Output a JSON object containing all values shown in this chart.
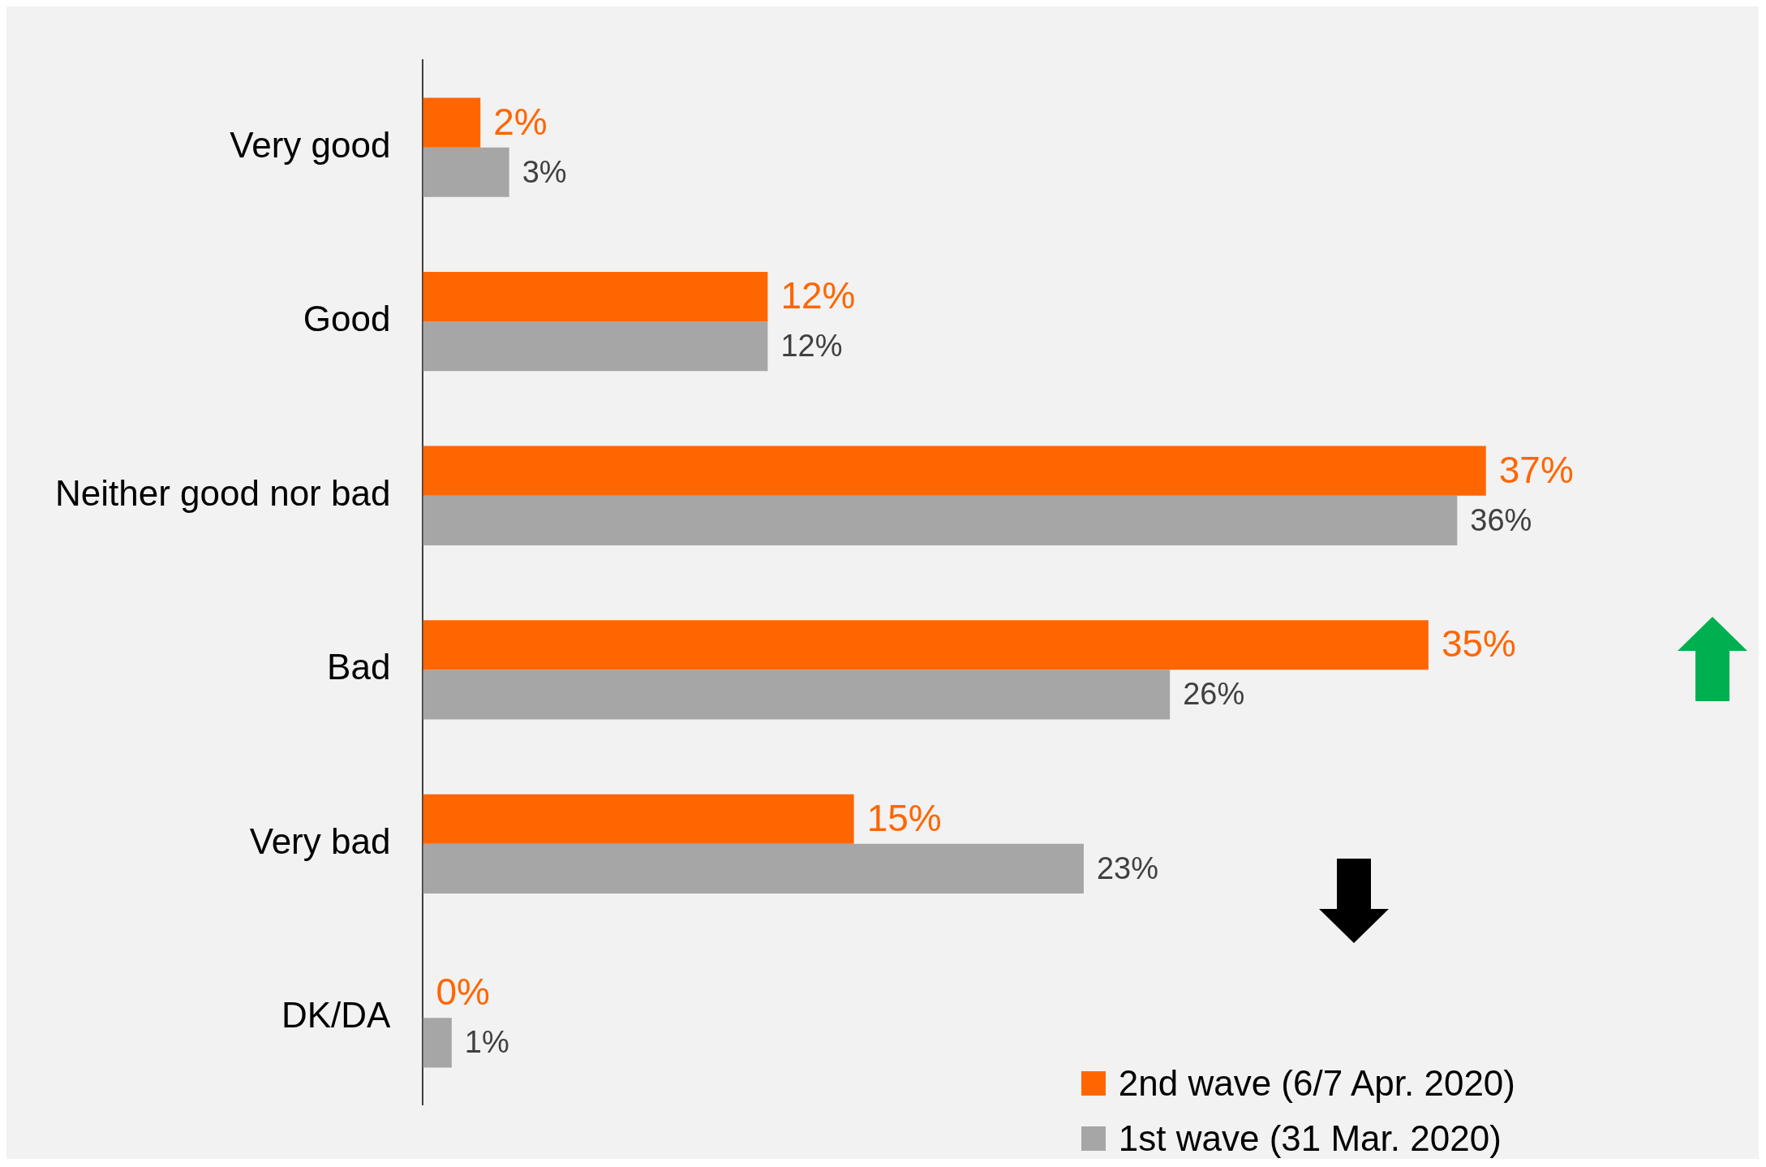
{
  "chart_data": {
    "type": "bar",
    "orientation": "horizontal",
    "categories": [
      "Very good",
      "Good",
      "Neither good nor bad",
      "Bad",
      "Very bad",
      "DK/DA"
    ],
    "series": [
      {
        "name": "2nd wave (6/7 Apr. 2020)",
        "color": "#ff6600",
        "values": [
          2,
          12,
          37,
          35,
          15,
          0
        ],
        "value_labels": [
          "2%",
          "12%",
          "37%",
          "35%",
          "15%",
          "0%"
        ]
      },
      {
        "name": "1st wave (31 Mar. 2020)",
        "color": "#a6a6a6",
        "values": [
          3,
          12,
          36,
          26,
          23,
          1
        ],
        "value_labels": [
          "3%",
          "12%",
          "36%",
          "26%",
          "23%",
          "1%"
        ]
      }
    ],
    "tick_labels": "y",
    "grid": false,
    "legend": "bottom right"
  }
}
